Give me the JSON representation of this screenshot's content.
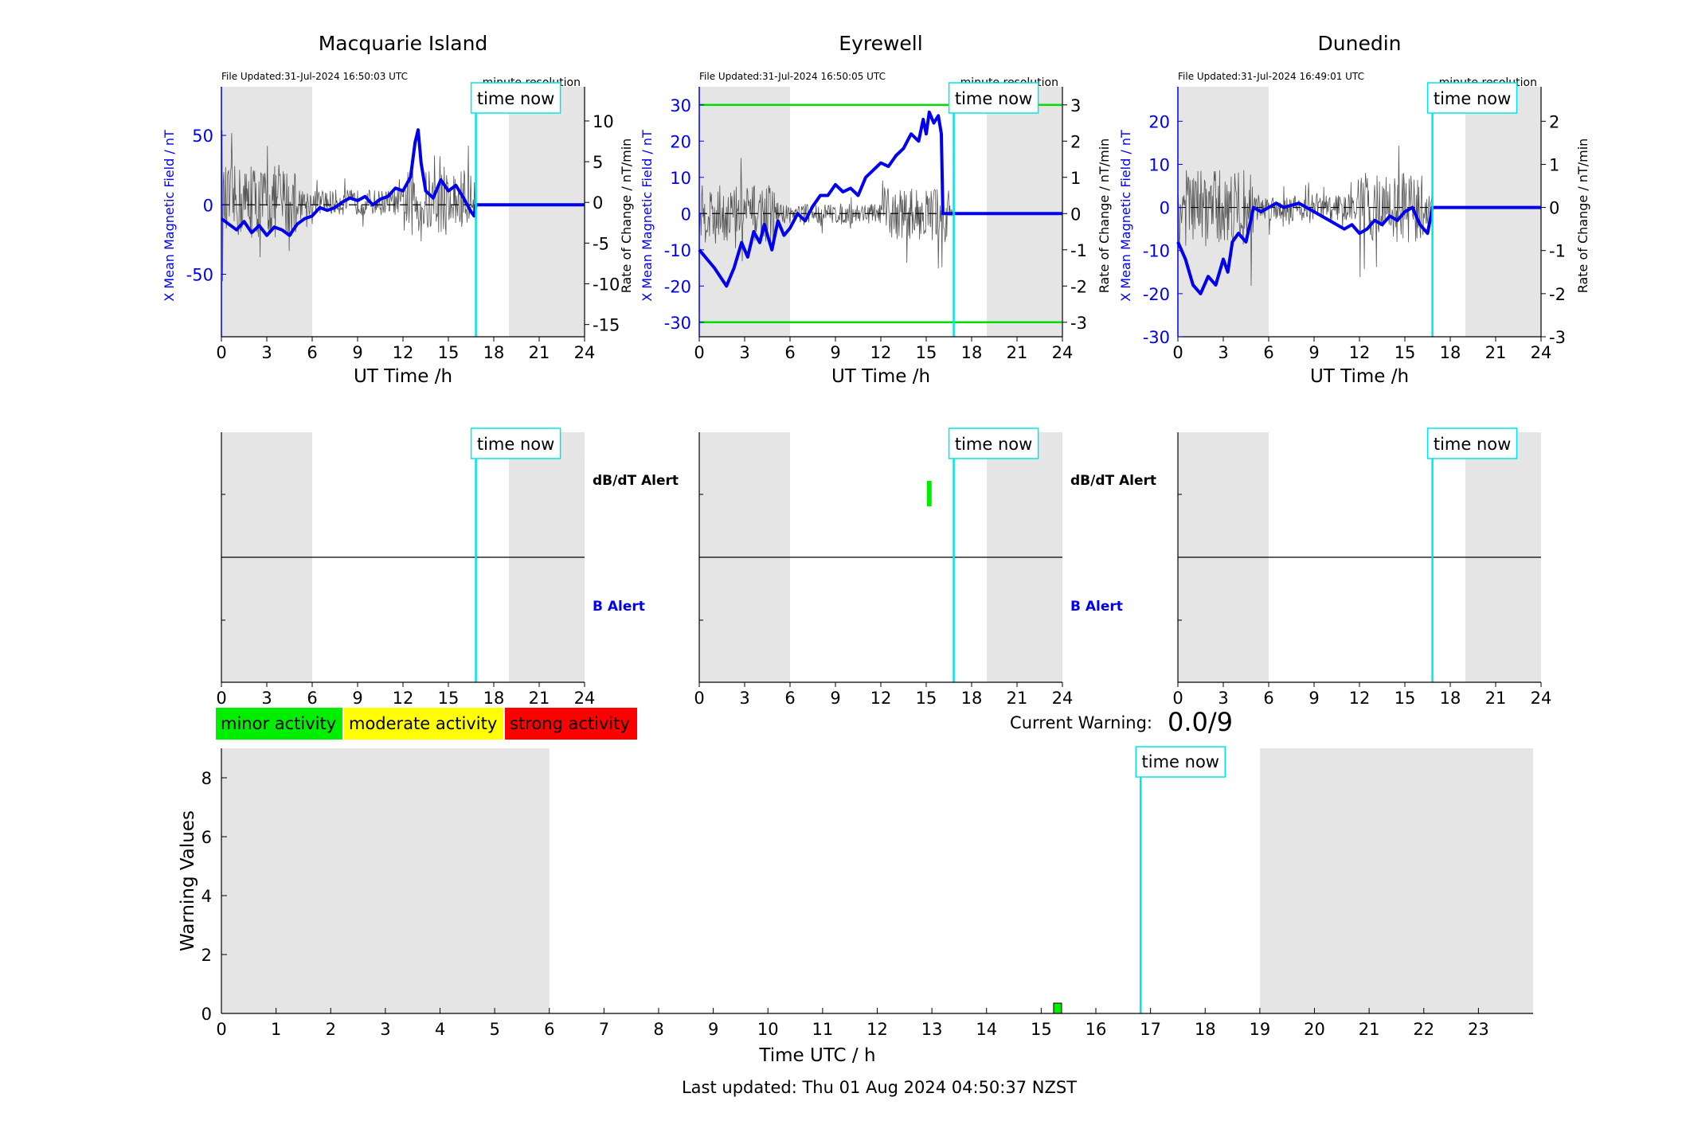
{
  "common": {
    "xlabel": "UT Time /h",
    "xticks": [
      0,
      3,
      6,
      9,
      12,
      15,
      18,
      21,
      24
    ],
    "time_now_label": "time now",
    "time_now_hour": 16.82,
    "shade_night": [
      [
        0,
        6
      ],
      [
        19,
        24
      ]
    ],
    "y2label": "Rate of Change / nT/min",
    "dbdt_alert_label": "dB/dT Alert",
    "b_alert_label": "B Alert",
    "resolution_label": "minute resolution",
    "colors": {
      "field": "#0000ee",
      "rate": "#555555",
      "time_now": "#00e5e5",
      "shade": "#e5e5e5",
      "threshold": "#00dd00"
    }
  },
  "stations": [
    {
      "name": "Macquarie Island",
      "file_updated": "File Updated:31-Jul-2024 16:50:03 UTC",
      "ylabel": "X Mean Magnetic Field / nT",
      "yticks": [
        50,
        0,
        -50
      ],
      "ylim": [
        -95,
        85
      ],
      "y2ticks": [
        10,
        5,
        0,
        -5,
        -10,
        -15
      ],
      "y2lim": [
        -16.5,
        14.2
      ],
      "thresholds": [],
      "field_trace": [
        [
          0,
          -10
        ],
        [
          0.5,
          -14
        ],
        [
          1,
          -18
        ],
        [
          1.5,
          -12
        ],
        [
          2,
          -20
        ],
        [
          2.5,
          -15
        ],
        [
          3,
          -22
        ],
        [
          3.5,
          -16
        ],
        [
          4,
          -18
        ],
        [
          4.5,
          -22
        ],
        [
          5,
          -14
        ],
        [
          5.5,
          -10
        ],
        [
          6,
          -8
        ],
        [
          6.5,
          -2
        ],
        [
          7,
          -4
        ],
        [
          7.5,
          -2
        ],
        [
          8,
          2
        ],
        [
          8.5,
          5
        ],
        [
          9,
          3
        ],
        [
          9.5,
          6
        ],
        [
          10,
          0
        ],
        [
          10.5,
          4
        ],
        [
          11,
          6
        ],
        [
          11.5,
          12
        ],
        [
          12,
          10
        ],
        [
          12.5,
          20
        ],
        [
          12.8,
          45
        ],
        [
          13,
          54
        ],
        [
          13.2,
          30
        ],
        [
          13.5,
          10
        ],
        [
          14,
          5
        ],
        [
          14.5,
          18
        ],
        [
          15,
          10
        ],
        [
          15.5,
          14
        ],
        [
          16,
          5
        ],
        [
          16.5,
          -5
        ],
        [
          16.7,
          -8
        ],
        [
          16.82,
          0
        ],
        [
          24,
          0
        ]
      ],
      "rate_amplitude": 4.5,
      "dbdt_alerts": []
    },
    {
      "name": "Eyrewell",
      "file_updated": "File Updated:31-Jul-2024 16:50:05 UTC",
      "ylabel": "X Mean Magnetic Field / nT",
      "yticks": [
        30,
        20,
        10,
        0,
        -10,
        -20,
        -30
      ],
      "ylim": [
        -34,
        35
      ],
      "y2ticks": [
        3,
        2,
        1,
        0,
        -1,
        -2,
        -3
      ],
      "y2lim": [
        -3.4,
        3.5
      ],
      "thresholds": [
        30,
        -30
      ],
      "field_trace": [
        [
          0,
          -10
        ],
        [
          1,
          -15
        ],
        [
          1.8,
          -20
        ],
        [
          2.3,
          -15
        ],
        [
          2.8,
          -8
        ],
        [
          3.2,
          -12
        ],
        [
          3.6,
          -5
        ],
        [
          4,
          -8
        ],
        [
          4.3,
          -3
        ],
        [
          4.8,
          -10
        ],
        [
          5.2,
          -2
        ],
        [
          5.6,
          -6
        ],
        [
          6,
          -4
        ],
        [
          6.5,
          0
        ],
        [
          7,
          -2
        ],
        [
          7.5,
          2
        ],
        [
          8,
          5
        ],
        [
          8.5,
          5
        ],
        [
          9,
          8
        ],
        [
          9.5,
          6
        ],
        [
          10,
          7
        ],
        [
          10.5,
          5
        ],
        [
          11,
          10
        ],
        [
          11.5,
          12
        ],
        [
          12,
          14
        ],
        [
          12.5,
          13
        ],
        [
          13,
          16
        ],
        [
          13.5,
          18
        ],
        [
          14,
          22
        ],
        [
          14.5,
          20
        ],
        [
          14.8,
          26
        ],
        [
          15,
          22
        ],
        [
          15.2,
          28
        ],
        [
          15.5,
          25
        ],
        [
          15.8,
          27
        ],
        [
          16,
          22
        ],
        [
          16.1,
          0
        ],
        [
          24,
          0
        ]
      ],
      "rate_amplitude": 0.8,
      "dbdt_alerts": [
        {
          "hour": 15.2,
          "level": "minor"
        }
      ]
    },
    {
      "name": "Dunedin",
      "file_updated": "File Updated:31-Jul-2024 16:49:01 UTC",
      "ylabel": "X Mean Magnetic Field / nT",
      "yticks": [
        20,
        10,
        0,
        -10,
        -20,
        -30
      ],
      "ylim": [
        -30,
        28
      ],
      "y2ticks": [
        2,
        1,
        0,
        -1,
        -2,
        -3
      ],
      "y2lim": [
        -3,
        2.8
      ],
      "thresholds": [],
      "field_trace": [
        [
          0,
          -8
        ],
        [
          0.5,
          -12
        ],
        [
          1,
          -18
        ],
        [
          1.5,
          -20
        ],
        [
          2,
          -16
        ],
        [
          2.5,
          -18
        ],
        [
          3,
          -12
        ],
        [
          3.3,
          -15
        ],
        [
          3.6,
          -8
        ],
        [
          4,
          -6
        ],
        [
          4.5,
          -8
        ],
        [
          5,
          0
        ],
        [
          5.5,
          -1
        ],
        [
          6,
          0
        ],
        [
          6.5,
          1
        ],
        [
          7,
          0
        ],
        [
          8,
          1
        ],
        [
          8.5,
          0
        ],
        [
          9,
          -1
        ],
        [
          10,
          -3
        ],
        [
          11,
          -5
        ],
        [
          11.5,
          -4
        ],
        [
          12,
          -6
        ],
        [
          12.5,
          -5
        ],
        [
          13,
          -3
        ],
        [
          13.5,
          -4
        ],
        [
          14,
          -2
        ],
        [
          14.5,
          -3
        ],
        [
          15,
          -1
        ],
        [
          15.5,
          0
        ],
        [
          16,
          -4
        ],
        [
          16.5,
          -6
        ],
        [
          16.82,
          0
        ],
        [
          24,
          0
        ]
      ],
      "rate_amplitude": 0.9,
      "dbdt_alerts": []
    }
  ],
  "legend": [
    {
      "label": "minor activity",
      "color": "#00ee00"
    },
    {
      "label": "moderate activity",
      "color": "#ffff00"
    },
    {
      "label": "strong activity",
      "color": "#ff0000"
    }
  ],
  "current_warning": {
    "label": "Current Warning:",
    "value": "0.0/9"
  },
  "chart_data": {
    "type": "bar",
    "title": "",
    "xlabel": "Time UTC / h",
    "ylabel": "Warning Values",
    "xlim": [
      0,
      24
    ],
    "ylim": [
      0,
      9
    ],
    "xticks": [
      0,
      1,
      2,
      3,
      4,
      5,
      6,
      7,
      8,
      9,
      10,
      11,
      12,
      13,
      14,
      15,
      16,
      17,
      18,
      19,
      20,
      21,
      22,
      23
    ],
    "yticks": [
      0,
      2,
      4,
      6,
      8
    ],
    "bars": [
      {
        "hour": 15.3,
        "value": 0.35,
        "level": "minor"
      }
    ],
    "shade_night": [
      [
        0,
        6
      ],
      [
        19,
        24
      ]
    ],
    "time_now_hour": 16.82
  },
  "footer": "Last updated: Thu 01 Aug 2024 04:50:37 NZST"
}
